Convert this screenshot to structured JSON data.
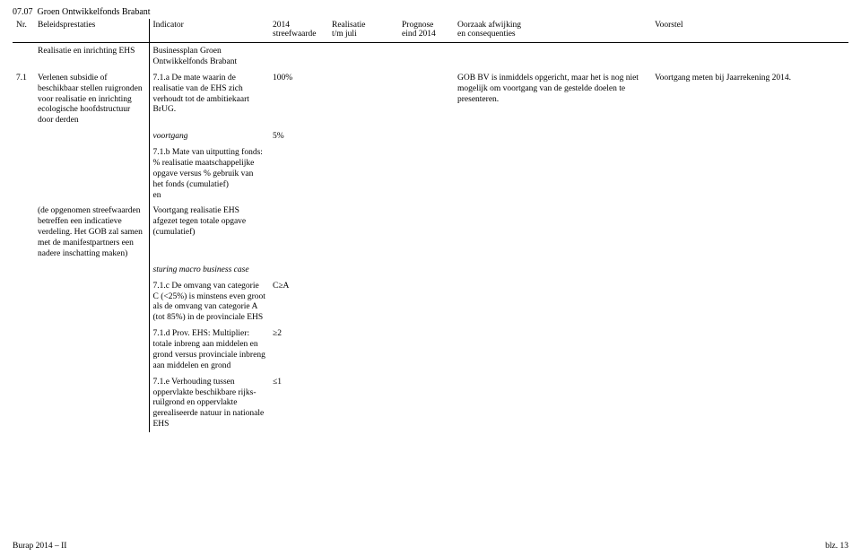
{
  "section": {
    "number": "07.07",
    "title": "Groen Ontwikkelfonds Brabant"
  },
  "header": {
    "nr": "Nr.",
    "beleid": "Beleidsprestaties",
    "indicator": "Indicator",
    "y2014a": "2014",
    "y2014b": "streefwaarde",
    "reala": "Realisatie",
    "realb": "t/m juli",
    "proga": "Prognose",
    "progb": "eind 2014",
    "oorza": "Oorzaak afwijking",
    "oorzb": "en consequenties",
    "voorstel": "Voorstel"
  },
  "row0": {
    "beleid": "Realisatie en inrichting EHS",
    "indicator": "Businessplan Groen Ontwikkelfonds Brabant"
  },
  "row1": {
    "nr": "7.1",
    "beleid": "Verlenen subsidie of beschikbaar stellen ruigronden voor realisatie en inrichting ecologische hoofdstructuur door derden",
    "ind_a": "7.1.a De mate waarin de realisatie van de EHS zich verhoudt tot de ambitiekaart BrUG.",
    "val_a": "100%",
    "oorz": "GOB BV is inmiddels opgericht, maar het is nog niet mogelijk om voortgang van de gestelde doelen te presenteren.",
    "voorstel": "Voortgang meten bij Jaarrekening 2014.",
    "voortgang_label": "voortgang",
    "voortgang_val": "5%",
    "ind_b": "7.1.b Mate van uitputting fonds: % realisatie maatschappelijke opgave versus % gebruik van het fonds (cumulatief)\nen",
    "beleid2": "(de opgenomen streefwaarden betreffen een indicatieve verdeling. Het GOB zal samen met de manifestpartners een nadere inschatting maken)",
    "ind_c_label": "Voortgang realisatie EHS afgezet tegen totale opgave (cumulatief)",
    "sturing": "sturing macro business case",
    "ind_c": "7.1.c De omvang van categorie C (<25%) is minstens even groot als de omvang van categorie A (tot 85%) in de provinciale EHS",
    "val_c": "C≥A",
    "ind_d": "7.1.d Prov. EHS: Multiplier: totale inbreng aan middelen en grond versus provinciale inbreng aan middelen en grond",
    "val_d": "≥2",
    "ind_e": "7.1.e Verhouding tussen oppervlakte beschikbare rijks-ruilgrond en oppervlakte gerealiseerde natuur in nationale EHS",
    "val_e": "≤1"
  },
  "footer": {
    "left": "Burap 2014 – II",
    "right": "blz. 13"
  }
}
